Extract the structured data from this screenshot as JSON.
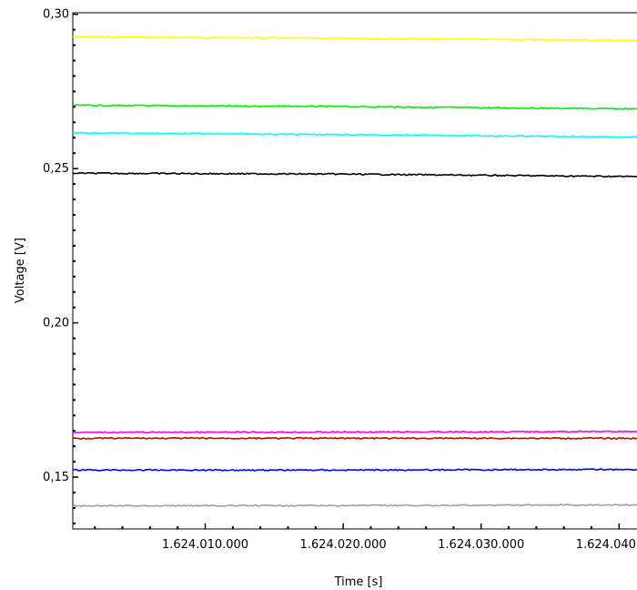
{
  "chart_data": {
    "type": "line",
    "xlabel": "Time [s]",
    "ylabel": "Voltage [V]",
    "xlim": [
      1624000400,
      1624041300
    ],
    "ylim": [
      0.1332,
      0.3005
    ],
    "x_ticks": [
      {
        "value": 1624010000,
        "label": "1.624.010.000"
      },
      {
        "value": 1624020000,
        "label": "1.624.020.000"
      },
      {
        "value": 1624030000,
        "label": "1.624.030.000"
      },
      {
        "value": 1624040000,
        "label": "1.624.040.000"
      }
    ],
    "y_ticks": [
      {
        "value": 0.15,
        "label": "0,15"
      },
      {
        "value": 0.2,
        "label": "0,20"
      },
      {
        "value": 0.25,
        "label": "0,25"
      },
      {
        "value": 0.3,
        "label": "0,30"
      }
    ],
    "grid": false,
    "legend": "none",
    "series": [
      {
        "color": "#ffff00",
        "x": [
          1624000400,
          1624020000,
          1624041300
        ],
        "y": [
          0.2927,
          0.2922,
          0.2915
        ]
      },
      {
        "color": "#00ee00",
        "x": [
          1624000400,
          1624020000,
          1624041300
        ],
        "y": [
          0.2705,
          0.2701,
          0.2693
        ]
      },
      {
        "color": "#00ffff",
        "x": [
          1624000400,
          1624020000,
          1624041300
        ],
        "y": [
          0.2616,
          0.261,
          0.2602
        ]
      },
      {
        "color": "#000000",
        "x": [
          1624000400,
          1624020000,
          1624041300
        ],
        "y": [
          0.2485,
          0.2482,
          0.2474
        ]
      },
      {
        "color": "#ff00ff",
        "x": [
          1624000400,
          1624020000,
          1624041300
        ],
        "y": [
          0.1645,
          0.1646,
          0.1648
        ]
      },
      {
        "color": "#cc0000",
        "x": [
          1624000400,
          1624020000,
          1624041300
        ],
        "y": [
          0.1626,
          0.1626,
          0.1626
        ]
      },
      {
        "color": "#0000ff",
        "x": [
          1624000400,
          1624020000,
          1624041300
        ],
        "y": [
          0.1523,
          0.1523,
          0.1525
        ]
      },
      {
        "color": "#a0a0a0",
        "x": [
          1624000400,
          1624020000,
          1624041300
        ],
        "y": [
          0.1407,
          0.1408,
          0.141
        ]
      }
    ]
  }
}
